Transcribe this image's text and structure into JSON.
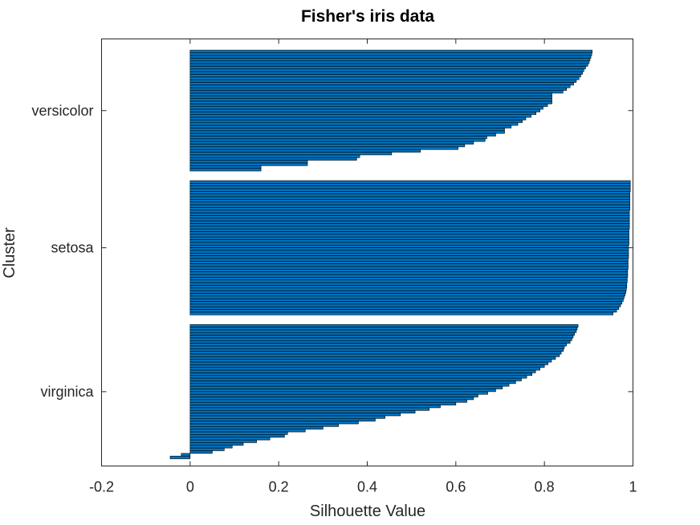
{
  "chart_data": {
    "type": "bar",
    "orientation": "horizontal",
    "title": "Fisher's iris data",
    "xlabel": "Silhouette Value",
    "ylabel": "Cluster",
    "xlim": [
      -0.2,
      1
    ],
    "xticks": [
      "-0.2",
      "0",
      "0.2",
      "0.4",
      "0.6",
      "0.8",
      "1"
    ],
    "bar_color": "#0072BD",
    "grid": false,
    "clusters": [
      {
        "label": "versicolor",
        "values": [
          0.908,
          0.907,
          0.905,
          0.903,
          0.901,
          0.898,
          0.893,
          0.889,
          0.886,
          0.882,
          0.878,
          0.872,
          0.866,
          0.858,
          0.85,
          0.842,
          0.817,
          0.817,
          0.817,
          0.817,
          0.807,
          0.797,
          0.79,
          0.781,
          0.77,
          0.758,
          0.75,
          0.74,
          0.725,
          0.71,
          0.71,
          0.69,
          0.67,
          0.666,
          0.64,
          0.62,
          0.605,
          0.52,
          0.455,
          0.383,
          0.376,
          0.265,
          0.265,
          0.16,
          0.16
        ]
      },
      {
        "label": "setosa",
        "values": [
          0.994,
          0.994,
          0.994,
          0.994,
          0.993,
          0.993,
          0.993,
          0.993,
          0.993,
          0.993,
          0.993,
          0.992,
          0.992,
          0.992,
          0.992,
          0.992,
          0.992,
          0.992,
          0.991,
          0.991,
          0.991,
          0.991,
          0.991,
          0.991,
          0.99,
          0.99,
          0.99,
          0.99,
          0.99,
          0.989,
          0.989,
          0.989,
          0.989,
          0.988,
          0.988,
          0.988,
          0.987,
          0.987,
          0.986,
          0.986,
          0.985,
          0.984,
          0.982,
          0.98,
          0.978,
          0.975,
          0.972,
          0.968,
          0.963,
          0.955
        ]
      },
      {
        "label": "virginica",
        "values": [
          0.876,
          0.874,
          0.872,
          0.868,
          0.865,
          0.862,
          0.858,
          0.85,
          0.845,
          0.843,
          0.838,
          0.834,
          0.825,
          0.816,
          0.808,
          0.8,
          0.79,
          0.78,
          0.772,
          0.76,
          0.748,
          0.735,
          0.72,
          0.705,
          0.69,
          0.672,
          0.65,
          0.64,
          0.625,
          0.6,
          0.565,
          0.54,
          0.508,
          0.475,
          0.44,
          0.418,
          0.38,
          0.335,
          0.3,
          0.26,
          0.22,
          0.213,
          0.18,
          0.15,
          0.12,
          0.095,
          0.077,
          0.05,
          -0.02,
          -0.045
        ]
      }
    ]
  }
}
